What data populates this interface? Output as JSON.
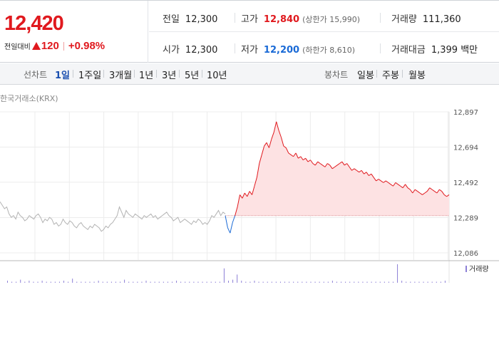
{
  "summary": {
    "current_price": "12,420",
    "change_caption": "전일대비",
    "change_amount": "120",
    "change_rate": "+0.98%"
  },
  "stats": {
    "prev_close_label": "전일",
    "prev_close": "12,300",
    "high_label": "고가",
    "high": "12,840",
    "upper_limit": "(상한가 15,990)",
    "volume_label": "거래량",
    "volume": "111,360",
    "open_label": "시가",
    "open": "12,300",
    "low_label": "저가",
    "low": "12,200",
    "lower_limit": "(하한가 8,610)",
    "amount_label": "거래대금",
    "amount": "1,399 백만"
  },
  "period_bar": {
    "line_chart_label": "선차트",
    "line_periods": [
      "1일",
      "1주일",
      "3개월",
      "1년",
      "3년",
      "5년",
      "10년"
    ],
    "candle_label": "봉차트",
    "candle_periods": [
      "일봉",
      "주봉",
      "월봉"
    ]
  },
  "source_label": "한국거래소(KRX)",
  "volume_legend": "거래량",
  "colors": {
    "up": "#e0191e",
    "down": "#1a6ad6",
    "previous_day": "#b3b3b3",
    "volume": "#8c7fd6"
  },
  "chart_data": {
    "type": "line",
    "yticks": [
      "12,897",
      "12,694",
      "12,492",
      "12,289",
      "12,086"
    ],
    "ylim": [
      12086,
      12897
    ],
    "baseline": 12300,
    "grid": true,
    "previous_day_series": [
      12380,
      12360,
      12340,
      12350,
      12310,
      12290,
      12300,
      12280,
      12320,
      12300,
      12290,
      12270,
      12280,
      12300,
      12290,
      12280,
      12300,
      12310,
      12290,
      12260,
      12280,
      12270,
      12290,
      12280,
      12250,
      12260,
      12240,
      12250,
      12280,
      12260,
      12250,
      12270,
      12260,
      12240,
      12230,
      12250,
      12260,
      12240,
      12230,
      12220,
      12240,
      12230,
      12250,
      12240,
      12230,
      12210,
      12220,
      12240,
      12230,
      12250,
      12260,
      12280,
      12300,
      12350,
      12320,
      12290,
      12330,
      12310,
      12300,
      12290,
      12310,
      12300,
      12290,
      12280,
      12300,
      12290,
      12300,
      12310,
      12290,
      12300,
      12280,
      12290,
      12300,
      12310,
      12320,
      12300,
      12290,
      12270,
      12280,
      12290,
      12260,
      12270,
      12280,
      12270,
      12260,
      12250,
      12270,
      12260,
      12280,
      12270,
      12250,
      12260,
      12250,
      12270,
      12300,
      12290,
      12310,
      12330,
      12300,
      12320,
      12310
    ],
    "today_series": [
      12300,
      12230,
      12200,
      12260,
      12300,
      12350,
      12420,
      12400,
      12430,
      12410,
      12440,
      12420,
      12470,
      12520,
      12600,
      12650,
      12700,
      12720,
      12690,
      12740,
      12780,
      12840,
      12790,
      12750,
      12700,
      12690,
      12660,
      12650,
      12640,
      12660,
      12630,
      12640,
      12620,
      12630,
      12610,
      12620,
      12600,
      12590,
      12610,
      12600,
      12590,
      12580,
      12600,
      12590,
      12570,
      12580,
      12590,
      12600,
      12610,
      12590,
      12600,
      12580,
      12560,
      12570,
      12560,
      12550,
      12560,
      12540,
      12550,
      12530,
      12540,
      12520,
      12500,
      12510,
      12500,
      12490,
      12500,
      12490,
      12480,
      12470,
      12490,
      12480,
      12470,
      12460,
      12480,
      12460,
      12450,
      12430,
      12450,
      12440,
      12430,
      12420,
      12430,
      12440,
      12460,
      12450,
      12440,
      12430,
      12450,
      12440,
      12420,
      12410,
      12420
    ],
    "volume": [
      2,
      1,
      1,
      3,
      1,
      2,
      1,
      1,
      2,
      1,
      1,
      1,
      1,
      2,
      1,
      4,
      1,
      1,
      1,
      1,
      1,
      2,
      1,
      1,
      1,
      1,
      1,
      3,
      1,
      1,
      1,
      1,
      2,
      1,
      1,
      1,
      1,
      1,
      1,
      2,
      1,
      1,
      1,
      1,
      1,
      1,
      1,
      1,
      1,
      1,
      14,
      2,
      3,
      8,
      2,
      1,
      1,
      2,
      1,
      1,
      1,
      1,
      1,
      1,
      1,
      1,
      1,
      1,
      1,
      1,
      1,
      1,
      1,
      1,
      1,
      2,
      1,
      1,
      1,
      1,
      1,
      1,
      1,
      1,
      1,
      1,
      1,
      1,
      1,
      1,
      18,
      2,
      1,
      1,
      1,
      1,
      1,
      1,
      1,
      1,
      1,
      2
    ]
  }
}
